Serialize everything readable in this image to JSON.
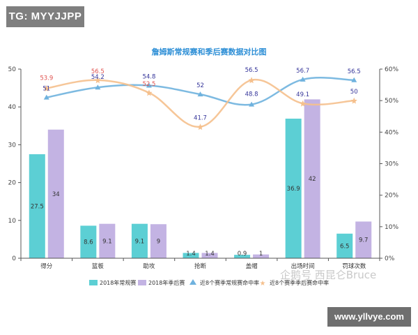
{
  "badges": {
    "top_left": "TG: MYYJJPP",
    "bottom_right": "www.yllvye.com"
  },
  "watermark": "企鹅号 西昆仑Bruce",
  "colors": {
    "regular_bar": "#5ccfd4",
    "playoff_bar": "#c3b3e3",
    "regular_line": "#6fb2de",
    "playoff_line": "#f5c08d",
    "title": "#2e8fd6",
    "regular_label": "#333399",
    "playoff_label": "#333399",
    "playoff_point_label": "#e0524f"
  },
  "chart_data": {
    "type": "bar+line",
    "title": "詹姆斯常规赛和季后赛数据对比图",
    "categories": [
      "得分",
      "篮板",
      "助攻",
      "抢断",
      "盖帽",
      "出场时间",
      "罚球次数"
    ],
    "y_left": {
      "min": 0,
      "max": 50,
      "ticks": [
        "0",
        "10",
        "20",
        "30",
        "40",
        "50"
      ]
    },
    "y_right": {
      "min": 0,
      "max": 60,
      "ticks": [
        "0%",
        "10%",
        "20%",
        "30%",
        "40%",
        "50%",
        "60%"
      ]
    },
    "series": [
      {
        "name": "2018年常规赛",
        "kind": "bar",
        "axis": "left",
        "values": [
          27.5,
          8.6,
          9.1,
          1.4,
          0.9,
          36.9,
          6.5
        ],
        "labels": [
          "27.5",
          "8.6",
          "9.1",
          "1.4",
          "0.9",
          "36.9",
          "6.5"
        ]
      },
      {
        "name": "2018年季后赛",
        "kind": "bar",
        "axis": "left",
        "values": [
          34,
          9.1,
          9,
          1.4,
          1,
          42,
          9.7
        ],
        "labels": [
          "34",
          "9.1",
          "9",
          "1.4",
          "1",
          "42",
          "9.7"
        ]
      },
      {
        "name": "近8个赛季常规赛命中率",
        "kind": "line",
        "axis": "right",
        "values": [
          51,
          54.2,
          54.8,
          52,
          48.8,
          56.7,
          56.5
        ],
        "labels": [
          "51",
          "54.2",
          "54.8",
          "52",
          "48.8",
          "56.7",
          "56.5"
        ]
      },
      {
        "name": "近8个赛季季后赛命中率",
        "kind": "line",
        "axis": "right",
        "values": [
          53.9,
          56.5,
          52.5,
          41.7,
          56.5,
          49.1,
          50
        ],
        "labels": [
          "53.9",
          "56.5",
          "52.5",
          "41.7",
          "56.5",
          "49.1",
          "50"
        ]
      }
    ],
    "legend_position": "bottom-center"
  }
}
